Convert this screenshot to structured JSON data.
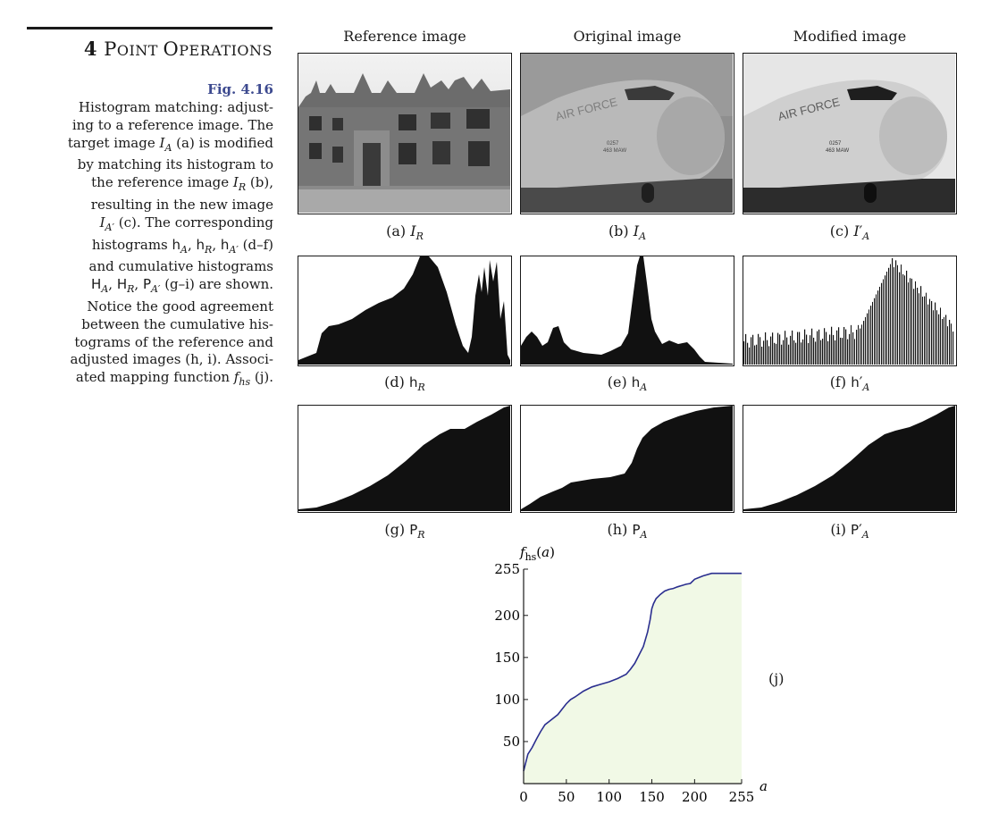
{
  "header": {
    "chapter_number": "4",
    "chapter_title_first": "P",
    "chapter_title_rest_a": "OINT ",
    "chapter_title_second": "O",
    "chapter_title_rest_b": "PERATIONS"
  },
  "figure": {
    "label": "Fig. 4.16",
    "caption_lines": [
      "Histogram matching: adjust-",
      "ing to a reference image. The",
      "target image I_A (a) is modified",
      "by matching its histogram to",
      "the reference image I_R (b),",
      "resulting in the new image",
      "I_A′ (c). The corresponding",
      "histograms h_A, h_R, h_A′ (d–f)",
      "and cumulative histograms",
      "H_A, H_R, P_A′ (g–i) are shown.",
      "Notice the good agreement",
      "between the cumulative his-",
      "tograms of the reference and",
      "adjusted images (h, i). Associ-",
      "ated mapping function f_hs (j)."
    ]
  },
  "columns": {
    "reference": "Reference image",
    "original": "Original image",
    "modified": "Modified image"
  },
  "labels": {
    "a": "(a)",
    "b": "(b)",
    "c": "(c)",
    "d": "(d)",
    "e": "(e)",
    "f": "(f)",
    "g": "(g)",
    "h": "(h)",
    "i": "(i)",
    "j": "(j)"
  },
  "images": {
    "reference": "manor-house-photo",
    "original": "aircraft-nose-photo",
    "modified": "aircraft-nose-photo",
    "aircraft_text": "AIR FORCE",
    "aircraft_tail_top": "0257",
    "aircraft_tail_bottom": "463 MAW"
  },
  "chart_data": {
    "type": "area",
    "x_label": "a",
    "y_label": "f_hs(a)",
    "x_ticks": [
      0,
      50,
      100,
      150,
      200,
      255
    ],
    "y_ticks": [
      50,
      100,
      150,
      200,
      255
    ],
    "xlim": [
      0,
      255
    ],
    "ylim": [
      0,
      255
    ],
    "grid": false,
    "line_color": "#2b2f8f",
    "fill_color": "#f1f9e6",
    "x": [
      0,
      5,
      10,
      15,
      20,
      25,
      30,
      40,
      50,
      55,
      60,
      70,
      80,
      90,
      100,
      110,
      120,
      125,
      130,
      135,
      140,
      145,
      148,
      150,
      152,
      155,
      160,
      165,
      170,
      175,
      180,
      190,
      195,
      200,
      205,
      210,
      220,
      230,
      240,
      255
    ],
    "y": [
      15,
      35,
      43,
      53,
      62,
      70,
      74,
      82,
      95,
      100,
      103,
      110,
      115,
      118,
      121,
      125,
      130,
      136,
      143,
      153,
      163,
      180,
      195,
      208,
      214,
      220,
      225,
      229,
      231,
      232,
      234,
      237,
      238,
      243,
      245,
      247,
      250,
      250,
      250,
      250
    ]
  }
}
